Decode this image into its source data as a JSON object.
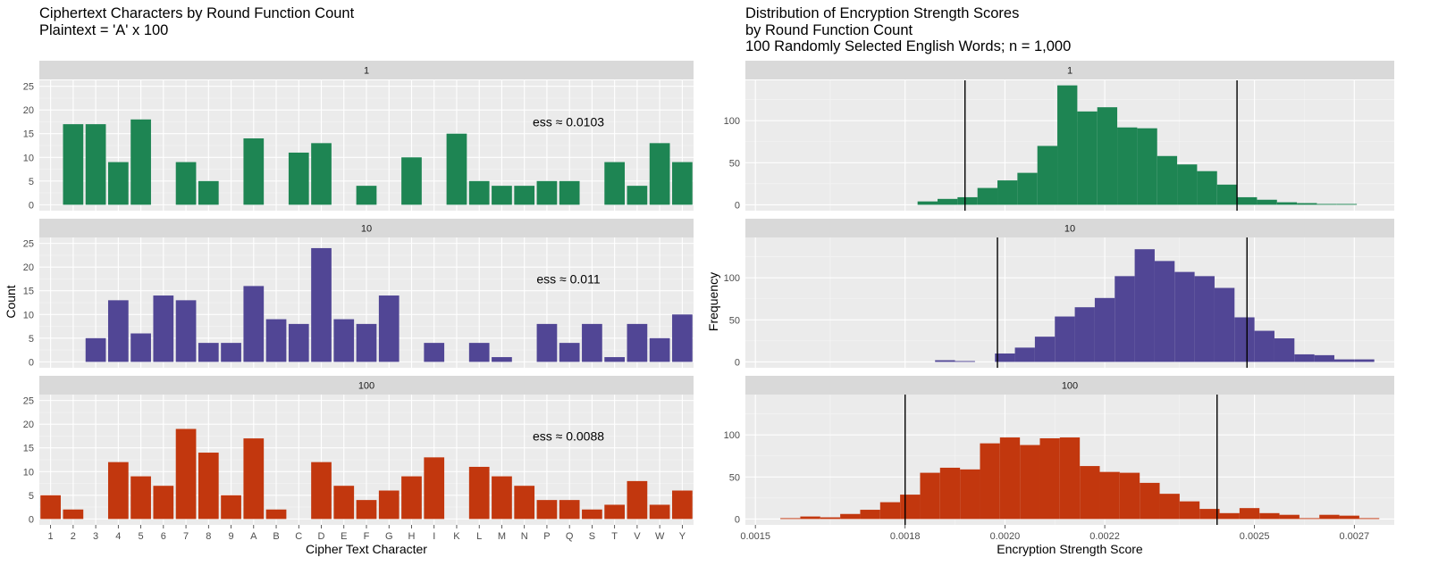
{
  "left_chart": {
    "title_line1": "Ciphertext Characters by Round Function Count",
    "title_line2": "Plaintext = 'A' x 100",
    "xlabel": "Cipher Text Character",
    "ylabel": "Count"
  },
  "right_chart": {
    "title_line1": "Distribution of Encryption Strength Scores",
    "title_line2": "by Round Function Count",
    "title_line3": "100 Randomly Selected English Words; n = 1,000",
    "xlabel": "Encryption Strength Score",
    "ylabel": "Frequency"
  },
  "colors": {
    "panel_bg": "#ebebeb",
    "grid_major": "#ffffff",
    "strip_bg": "#d9d9d9",
    "series": [
      "#1e8553",
      "#514695",
      "#c2370e"
    ]
  },
  "chart_data": [
    {
      "type": "bar",
      "title": "Ciphertext Characters by Round Function Count",
      "subtitle": "Plaintext = 'A' x 100",
      "xlabel": "Cipher Text Character",
      "ylabel": "Count",
      "categories": [
        "1",
        "2",
        "3",
        "4",
        "5",
        "6",
        "7",
        "8",
        "9",
        "A",
        "B",
        "C",
        "D",
        "E",
        "F",
        "G",
        "H",
        "I",
        "K",
        "L",
        "M",
        "N",
        "P",
        "Q",
        "S",
        "T",
        "V",
        "W",
        "Y"
      ],
      "ylim": [
        0,
        25
      ],
      "yticks": [
        0,
        5,
        10,
        15,
        20,
        25
      ],
      "grid": true,
      "facets": [
        {
          "strip": "1",
          "annotation": "ess ≈ 0.0103",
          "values": [
            0,
            17,
            17,
            9,
            18,
            0,
            9,
            5,
            0,
            14,
            0,
            11,
            13,
            0,
            4,
            0,
            10,
            0,
            15,
            5,
            4,
            4,
            5,
            5,
            0,
            9,
            4,
            13,
            9
          ]
        },
        {
          "strip": "10",
          "annotation": "ess ≈ 0.011",
          "values": [
            0,
            0,
            5,
            13,
            6,
            14,
            13,
            4,
            4,
            16,
            9,
            8,
            24,
            9,
            8,
            14,
            0,
            4,
            0,
            4,
            1,
            0,
            8,
            4,
            8,
            1,
            8,
            5,
            10
          ]
        },
        {
          "strip": "100",
          "annotation": "ess ≈ 0.0088",
          "values": [
            5,
            2,
            0,
            12,
            9,
            7,
            19,
            14,
            5,
            17,
            2,
            0,
            12,
            7,
            4,
            6,
            9,
            13,
            0,
            11,
            9,
            7,
            4,
            4,
            2,
            3,
            8,
            3,
            6
          ]
        }
      ]
    },
    {
      "type": "bar",
      "title": "Distribution of Encryption Strength Scores",
      "subtitle": "by Round Function Count; 100 Randomly Selected English Words; n = 1,000",
      "xlabel": "Encryption Strength Score",
      "ylabel": "Frequency",
      "xlim": [
        0.00148,
        0.00278
      ],
      "xticks": [
        0.0015,
        0.0018,
        0.002,
        0.0022,
        0.0025,
        0.0027
      ],
      "xtick_labels": [
        "0.0015",
        "0.0018",
        "0.0020",
        "0.0022",
        "0.0025",
        "0.0027"
      ],
      "ylim": [
        0,
        148
      ],
      "yticks": [
        0,
        50,
        100
      ],
      "grid": true,
      "facets": [
        {
          "strip": "1",
          "bin_start": 0.001825,
          "bin_width": 4e-05,
          "values": [
            4,
            7,
            9,
            20,
            29,
            38,
            70,
            142,
            111,
            116,
            92,
            91,
            58,
            48,
            40,
            24,
            9,
            6,
            3,
            2,
            1,
            1
          ],
          "vlines": [
            0.00192,
            0.002465
          ]
        },
        {
          "strip": "10",
          "bin_start": 0.00186,
          "bin_width": 4e-05,
          "values": [
            2,
            1,
            0,
            10,
            17,
            30,
            54,
            65,
            76,
            102,
            134,
            120,
            107,
            102,
            88,
            53,
            37,
            28,
            9,
            8,
            3,
            3,
            0,
            0,
            0,
            2
          ],
          "vlines": [
            0.001985,
            0.002485
          ]
        },
        {
          "strip": "100",
          "bin_start": 0.00155,
          "bin_width": 4e-05,
          "values": [
            1,
            3,
            2,
            6,
            11,
            20,
            29,
            55,
            61,
            59,
            90,
            97,
            88,
            96,
            97,
            63,
            56,
            55,
            43,
            30,
            21,
            12,
            7,
            13,
            7,
            5,
            1,
            5,
            4,
            1
          ],
          "vlines": [
            0.0018,
            0.002425
          ]
        }
      ]
    }
  ]
}
